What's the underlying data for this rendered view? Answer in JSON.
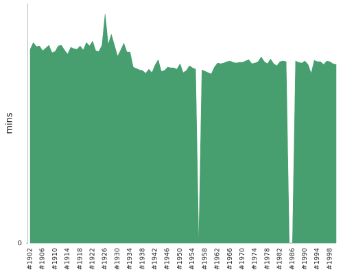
{
  "chart_data": {
    "type": "area",
    "y_label": "mins",
    "color": "#479e6e",
    "categories": [
      "#1902",
      null,
      null,
      null,
      "#1906",
      null,
      null,
      null,
      "#1910",
      null,
      null,
      null,
      "#1914",
      null,
      null,
      null,
      "#1918",
      null,
      null,
      null,
      "#1922",
      null,
      null,
      null,
      "#1926",
      null,
      null,
      null,
      "#1930",
      null,
      null,
      null,
      "#1934",
      null,
      null,
      null,
      "#1938",
      null,
      null,
      null,
      "#1942",
      null,
      null,
      null,
      "#1946",
      null,
      null,
      null,
      "#1950",
      null,
      null,
      null,
      "#1954",
      null,
      null,
      null,
      "#1958",
      null,
      null,
      null,
      "#1962",
      null,
      null,
      null,
      "#1966",
      null,
      null,
      null,
      "#1970",
      null,
      null,
      null,
      "#1974",
      null,
      null,
      null,
      "#1978",
      null,
      null,
      null,
      "#1982",
      null,
      null,
      null,
      "#1986",
      null,
      null,
      null,
      "#1990",
      null,
      null,
      null,
      "#1994",
      null,
      null,
      null,
      "#1998",
      null,
      null
    ],
    "values": [
      283,
      293,
      287,
      288,
      281,
      285,
      289,
      278,
      280,
      288,
      289,
      282,
      276,
      286,
      284,
      283,
      288,
      282,
      293,
      288,
      295,
      281,
      280,
      289,
      335,
      290,
      305,
      289,
      273,
      282,
      292,
      279,
      279,
      257,
      255,
      253,
      252,
      248,
      254,
      249,
      260,
      268,
      251,
      252,
      257,
      256,
      256,
      254,
      262,
      249,
      252,
      259,
      256,
      254,
      0,
      253,
      251,
      249,
      247,
      257,
      263,
      262,
      263,
      265,
      266,
      264,
      263,
      264,
      264,
      266,
      268,
      262,
      263,
      265,
      272,
      265,
      262,
      269,
      262,
      259,
      265,
      266,
      265,
      0,
      0,
      266,
      264,
      263,
      266,
      261,
      248,
      267,
      265,
      265,
      261,
      266,
      265,
      262,
      261
    ],
    "ylim": [
      0,
      350
    ],
    "yticks": [
      0
    ]
  }
}
